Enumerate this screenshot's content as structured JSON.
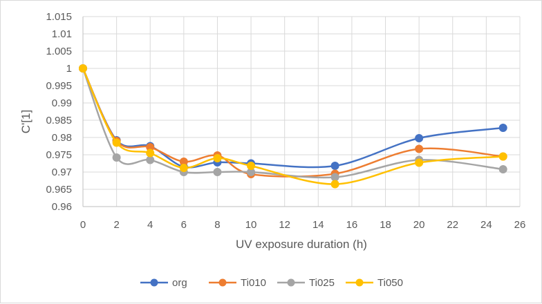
{
  "chart_data": {
    "type": "line",
    "title": "",
    "xlabel": "UV exposure duration (h)",
    "ylabel": "C'[1]",
    "xlim": [
      0,
      26
    ],
    "ylim": [
      0.96,
      1.015
    ],
    "x_ticks": [
      "0",
      "2",
      "4",
      "6",
      "8",
      "10",
      "12",
      "14",
      "16",
      "18",
      "20",
      "22",
      "24",
      "26"
    ],
    "y_ticks": [
      "0.96",
      "0.965",
      "0.97",
      "0.975",
      "0.98",
      "0.985",
      "0.99",
      "0.995",
      "1",
      "1.005",
      "1.01",
      "1.015"
    ],
    "x": [
      0,
      2,
      4,
      6,
      8,
      10,
      15,
      20,
      25
    ],
    "grid": true,
    "smooth": true,
    "legend_position": "bottom",
    "series": [
      {
        "name": "org",
        "color": "#4472c4",
        "values": [
          1,
          0.9792,
          0.9775,
          0.9715,
          0.9728,
          0.9725,
          0.9718,
          0.9798,
          0.9828
        ]
      },
      {
        "name": "Ti010",
        "color": "#ed7d31",
        "values": [
          1,
          0.979,
          0.9772,
          0.973,
          0.9748,
          0.9694,
          0.9695,
          0.9767,
          0.9745
        ]
      },
      {
        "name": "Ti025",
        "color": "#a5a5a5",
        "values": [
          1,
          0.9742,
          0.9735,
          0.97,
          0.97,
          0.97,
          0.9685,
          0.9735,
          0.9708
        ]
      },
      {
        "name": "Ti050",
        "color": "#ffc000",
        "values": [
          1,
          0.9785,
          0.9755,
          0.9712,
          0.974,
          0.9718,
          0.9665,
          0.9727,
          0.9745
        ]
      }
    ]
  }
}
